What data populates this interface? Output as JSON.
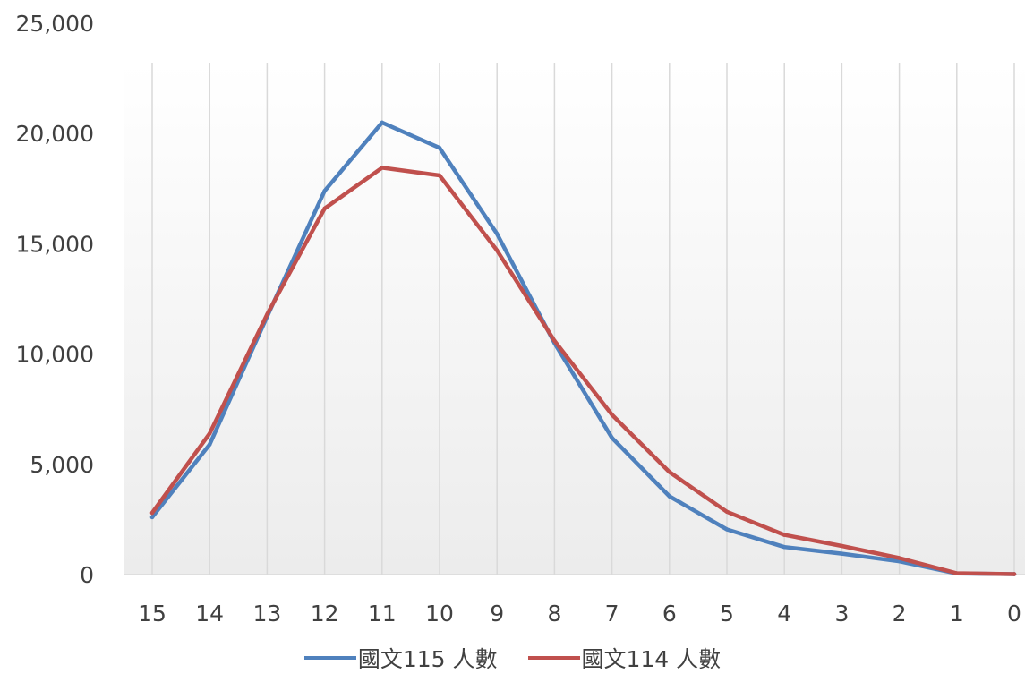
{
  "chart_data": {
    "type": "line",
    "title": "",
    "xlabel": "",
    "ylabel": "",
    "categories": [
      "15",
      "14",
      "13",
      "12",
      "11",
      "10",
      "9",
      "8",
      "7",
      "6",
      "5",
      "4",
      "3",
      "2",
      "1",
      "0"
    ],
    "ylim": [
      0,
      25000
    ],
    "yticks": [
      0,
      5000,
      10000,
      15000,
      20000,
      25000
    ],
    "ytick_labels": [
      "0",
      "5,000",
      "10,000",
      "15,000",
      "20,000",
      "25,000"
    ],
    "grid": "vertical",
    "legend_position": "bottom",
    "series": [
      {
        "name": "國文115 人數",
        "color": "#4F81BD",
        "values": [
          2600,
          5900,
          11700,
          17400,
          20500,
          19350,
          15450,
          10500,
          6200,
          3550,
          2050,
          1250,
          950,
          600,
          50,
          20
        ]
      },
      {
        "name": "國文114 人數",
        "color": "#C0504D",
        "values": [
          2800,
          6400,
          11800,
          16600,
          18450,
          18100,
          14700,
          10600,
          7250,
          4650,
          2850,
          1800,
          1300,
          750,
          60,
          20
        ]
      }
    ]
  }
}
